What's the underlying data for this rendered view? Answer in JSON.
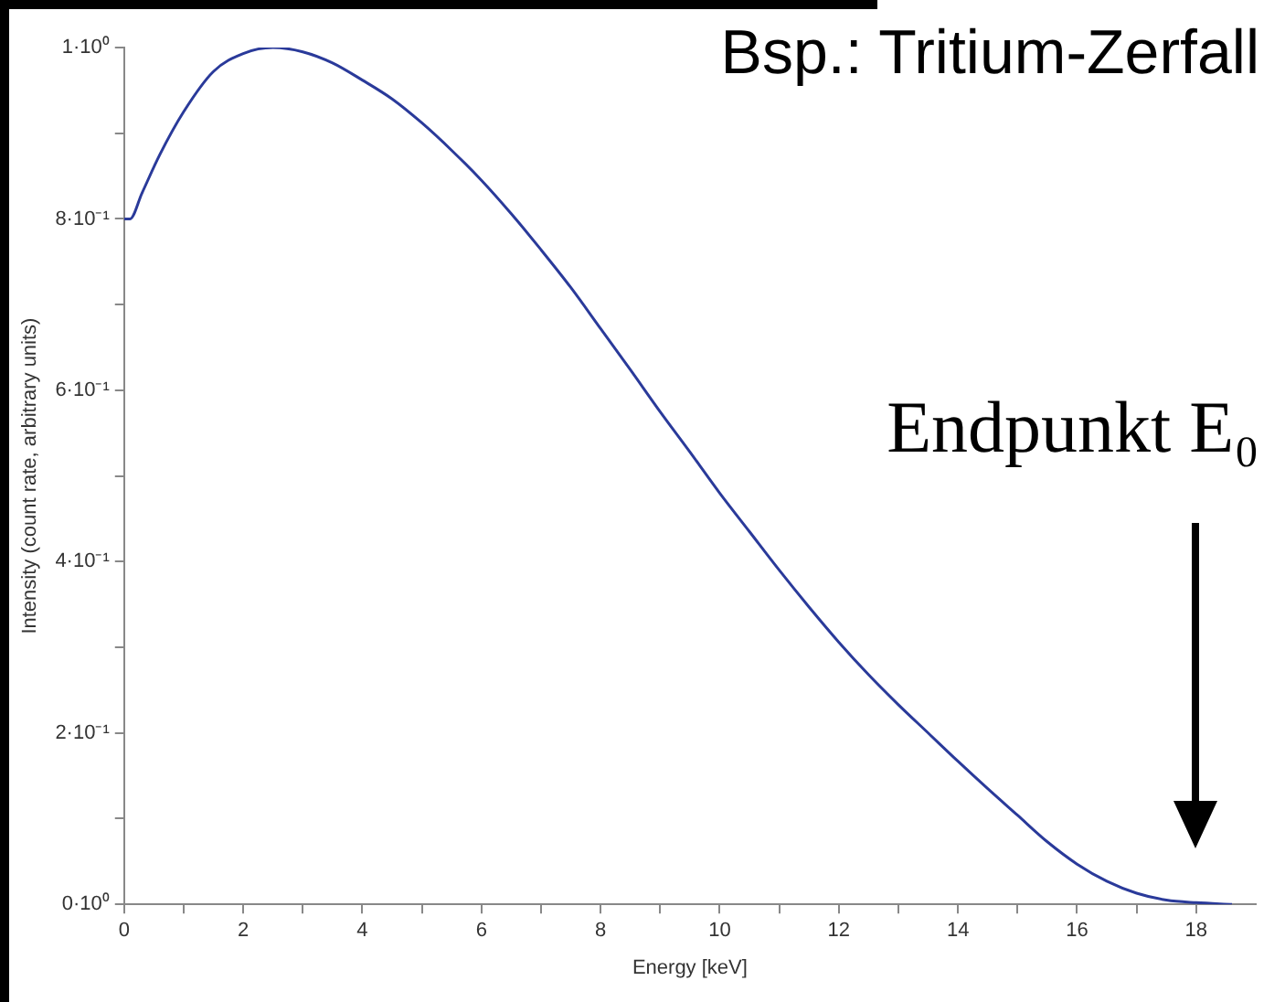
{
  "chart_data": {
    "type": "line",
    "title": "Bsp.: Tritium-Zerfall",
    "xlabel": "Energy [keV]",
    "ylabel": "Intensity (count rate, arbitrary units)",
    "x": [
      0,
      0.1,
      0.3,
      0.6,
      1.0,
      1.5,
      2.0,
      2.5,
      3.0,
      3.5,
      4.0,
      4.5,
      5.0,
      5.5,
      6.0,
      6.5,
      7.0,
      7.5,
      8.0,
      8.5,
      9.0,
      9.5,
      10.0,
      10.5,
      11.0,
      11.5,
      12.0,
      12.5,
      13.0,
      13.5,
      14.0,
      14.5,
      15.0,
      15.5,
      16.0,
      16.5,
      17.0,
      17.5,
      18.0,
      18.6
    ],
    "series": [
      {
        "color": "#2a3a9a",
        "values": [
          0.8,
          0.8,
          0.83,
          0.875,
          0.925,
          0.972,
          0.993,
          1.0,
          0.995,
          0.982,
          0.962,
          0.94,
          0.912,
          0.88,
          0.845,
          0.806,
          0.764,
          0.72,
          0.672,
          0.624,
          0.575,
          0.528,
          0.48,
          0.435,
          0.39,
          0.347,
          0.306,
          0.268,
          0.233,
          0.2,
          0.167,
          0.135,
          0.104,
          0.073,
          0.047,
          0.027,
          0.013,
          0.005,
          0.002,
          0
        ]
      }
    ],
    "xlim": [
      0,
      19
    ],
    "xticks": [
      0,
      {
        "value": 1,
        "label": null
      },
      2,
      {
        "value": 3,
        "label": null
      },
      4,
      {
        "value": 5,
        "label": null
      },
      6,
      {
        "value": 7,
        "label": null
      },
      8,
      {
        "value": 9,
        "label": null
      },
      10,
      {
        "value": 11,
        "label": null
      },
      12,
      {
        "value": 13,
        "label": null
      },
      14,
      {
        "value": 15,
        "label": null
      },
      16,
      {
        "value": 17,
        "label": null
      },
      18
    ],
    "ylim": [
      0,
      1
    ],
    "yticks": [
      {
        "value": 0,
        "label": "0·10⁰"
      },
      {
        "value": 0.1,
        "label": null
      },
      {
        "value": 0.2,
        "label": "2·10⁻¹"
      },
      {
        "value": 0.3,
        "label": null
      },
      {
        "value": 0.4,
        "label": "4·10⁻¹"
      },
      {
        "value": 0.5,
        "label": null
      },
      {
        "value": 0.6,
        "label": "6·10⁻¹"
      },
      {
        "value": 0.7,
        "label": null
      },
      {
        "value": 0.8,
        "label": "8·10⁻¹"
      },
      {
        "value": 0.9,
        "label": null
      },
      {
        "value": 1,
        "label": "1·10⁰"
      }
    ],
    "grid": false,
    "legend": false,
    "marker": "none",
    "line_style": "solid",
    "annotations": [
      "Endpunkt E₀"
    ]
  }
}
